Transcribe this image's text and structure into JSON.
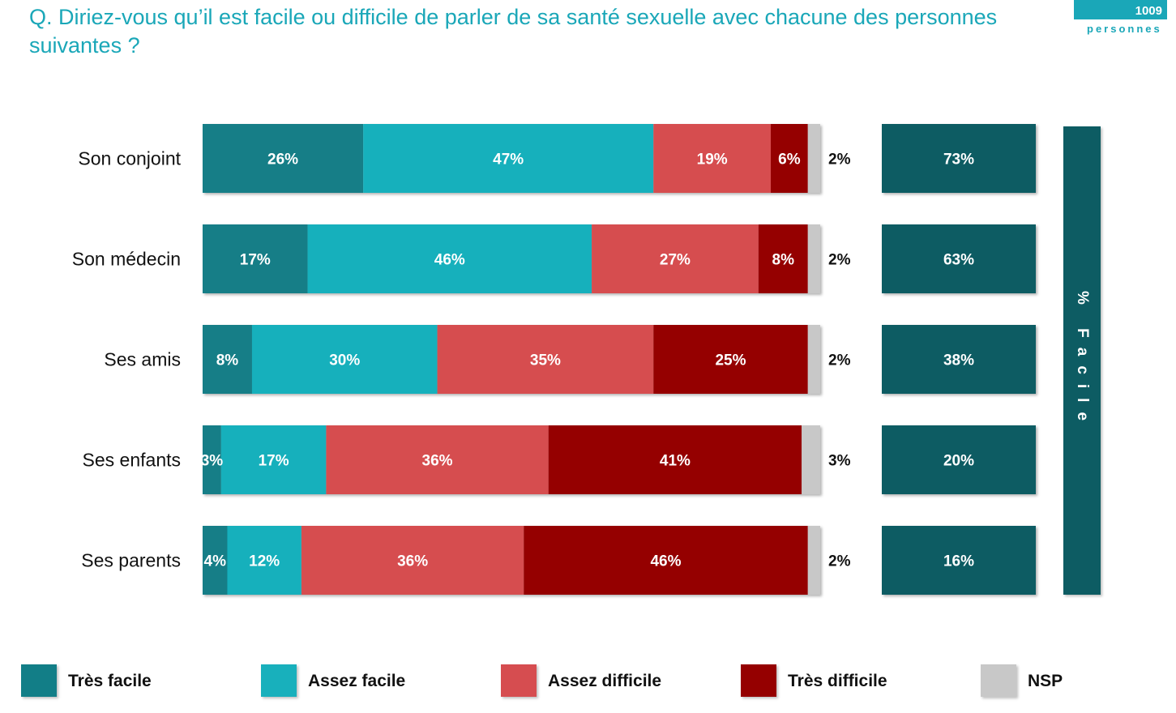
{
  "question": "Q. Diriez-vous qu’il est facile ou difficile de parler de sa santé sexuelle avec chacune des personnes suivantes ?",
  "sample": {
    "count": "1009",
    "unit": "personnes"
  },
  "colors": {
    "tres_facile": "#127E87",
    "assez_facile": "#18B0BC",
    "assez_difficile": "#D64D50",
    "tres_difficile": "#950000",
    "nsp": "#C8C8C8",
    "total_facile": "#0D5C63"
  },
  "vertical_label": "% Facile",
  "legend": [
    {
      "key": "tres_facile",
      "label": "Très facile"
    },
    {
      "key": "assez_facile",
      "label": "Assez facile"
    },
    {
      "key": "assez_difficile",
      "label": "Assez difficile"
    },
    {
      "key": "tres_difficile",
      "label": "Très difficile"
    },
    {
      "key": "nsp",
      "label": "NSP"
    }
  ],
  "chart_data": {
    "type": "bar",
    "orientation": "horizontal",
    "stacked": true,
    "title": "",
    "categories": [
      "Son conjoint",
      "Son médecin",
      "Ses amis",
      "Ses enfants",
      "Ses parents"
    ],
    "series": [
      {
        "name": "Très facile",
        "key": "tres_facile",
        "values": [
          26,
          17,
          8,
          3,
          4
        ]
      },
      {
        "name": "Assez facile",
        "key": "assez_facile",
        "values": [
          47,
          46,
          30,
          17,
          12
        ]
      },
      {
        "name": "Assez difficile",
        "key": "assez_difficile",
        "values": [
          19,
          27,
          35,
          36,
          36
        ]
      },
      {
        "name": "Très difficile",
        "key": "tres_difficile",
        "values": [
          6,
          8,
          25,
          41,
          46
        ]
      },
      {
        "name": "NSP",
        "key": "nsp",
        "values": [
          2,
          2,
          2,
          3,
          2
        ]
      }
    ],
    "total_facile": [
      73,
      63,
      38,
      20,
      16
    ],
    "value_suffix": "%",
    "xlim": [
      0,
      100
    ]
  }
}
